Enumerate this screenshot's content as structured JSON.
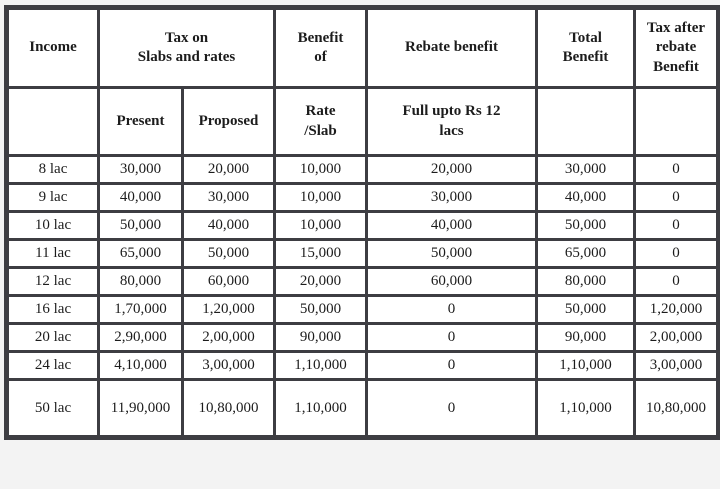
{
  "chart_data": {
    "type": "table",
    "header_row1": [
      "Income",
      "Tax on\nSlabs and rates",
      "Benefit\nof",
      "Rebate benefit",
      "Total\nBenefit",
      "Tax after\nrebate\nBenefit"
    ],
    "header_row2": [
      "",
      "Present",
      "Proposed",
      "Rate\n/Slab",
      "Full upto Rs 12\nlacs",
      "",
      ""
    ],
    "columns": [
      "Income",
      "Tax on Slabs and rates - Present",
      "Tax on Slabs and rates - Proposed",
      "Benefit of Rate/Slab",
      "Rebate benefit (Full upto Rs 12 lacs)",
      "Total Benefit",
      "Tax after rebate Benefit"
    ],
    "rows": [
      [
        "8 lac",
        "30,000",
        "20,000",
        "10,000",
        "20,000",
        "30,000",
        "0"
      ],
      [
        "9 lac",
        "40,000",
        "30,000",
        "10,000",
        "30,000",
        "40,000",
        "0"
      ],
      [
        "10 lac",
        "50,000",
        "40,000",
        "10,000",
        "40,000",
        "50,000",
        "0"
      ],
      [
        "11 lac",
        "65,000",
        "50,000",
        "15,000",
        "50,000",
        "65,000",
        "0"
      ],
      [
        "12 lac",
        "80,000",
        "60,000",
        "20,000",
        "60,000",
        "80,000",
        "0"
      ],
      [
        "16 lac",
        "1,70,000",
        "1,20,000",
        "50,000",
        "0",
        "50,000",
        "1,20,000"
      ],
      [
        "20 lac",
        "2,90,000",
        "2,00,000",
        "90,000",
        "0",
        "90,000",
        "2,00,000"
      ],
      [
        "24 lac",
        "4,10,000",
        "3,00,000",
        "1,10,000",
        "0",
        "1,10,000",
        "3,00,000"
      ],
      [
        "50 lac",
        "11,90,000",
        "10,80,000",
        "1,10,000",
        "0",
        "1,10,000",
        "10,80,000"
      ]
    ]
  },
  "colors": {
    "border": "#3d3d42",
    "cell_background": "#ffffff",
    "text": "#1c1c1c",
    "page_background": "#f3f3f3",
    "bottom_strip": "#d7d7d7"
  }
}
